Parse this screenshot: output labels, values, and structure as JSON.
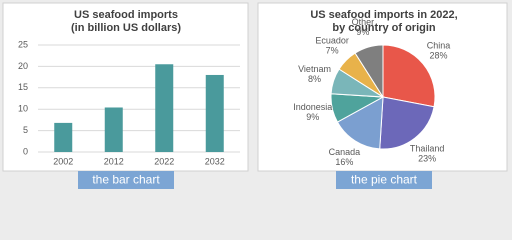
{
  "chart_data": [
    {
      "type": "bar",
      "title": [
        "US seafood imports",
        "(in billion US dollars)"
      ],
      "categories": [
        "2002",
        "2012",
        "2022",
        "2032"
      ],
      "values": [
        6.8,
        10.4,
        20.5,
        18.0
      ],
      "color": "#4a9a9c",
      "ylim": [
        0,
        25
      ],
      "yticks": [
        0,
        5,
        10,
        15,
        20,
        25
      ],
      "grid": true,
      "caption": "the bar chart"
    },
    {
      "type": "pie",
      "title": [
        "US seafood imports in 2022,",
        "by country of origin"
      ],
      "categories": [
        "China",
        "Thailand",
        "Canada",
        "Indonesia",
        "Vietnam",
        "Ecuador",
        "Other"
      ],
      "values": [
        28,
        23,
        16,
        9,
        8,
        7,
        9
      ],
      "value_labels": [
        "28%",
        "23%",
        "16%",
        "9%",
        "8%",
        "7%",
        "9%"
      ],
      "colors": [
        "#e8574a",
        "#6c68b9",
        "#7b9fd0",
        "#4fa39c",
        "#7ab6b9",
        "#e8b24a",
        "#7f7f7f"
      ],
      "caption": "the pie chart"
    }
  ]
}
